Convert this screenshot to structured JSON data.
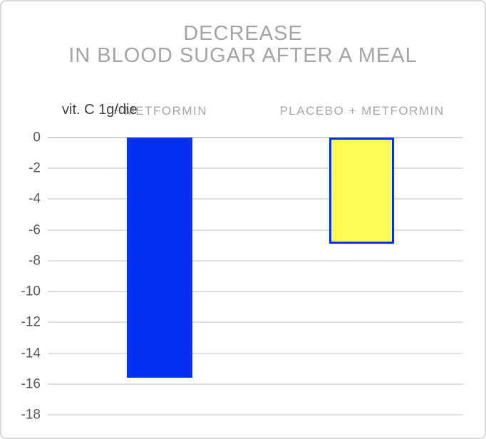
{
  "title": {
    "line1": "DECREASE",
    "line2": "IN BLOOD SUGAR AFTER A MEAL"
  },
  "annotation": {
    "text": "vit. C 1g/die"
  },
  "chart_data": {
    "type": "bar",
    "orientation": "vertical",
    "title": "DECREASE IN BLOOD SUGAR AFTER A MEAL",
    "categories": [
      "+ METFORMIN",
      "PLACEBO + METFORMIN"
    ],
    "values": [
      -15.6,
      -6.9
    ],
    "series": [
      {
        "name": "vit. C 1g/die + METFORMIN",
        "value": -15.6,
        "fill": "#0430f4",
        "border": "none"
      },
      {
        "name": "PLACEBO + METFORMIN",
        "value": -6.9,
        "fill": "#fffb57",
        "border": "#0430f4"
      }
    ],
    "xlabel": "",
    "ylabel": "",
    "ylim": [
      -18,
      0
    ],
    "yticks": [
      0,
      -2,
      -4,
      -6,
      -8,
      -10,
      -12,
      -14,
      -16,
      -18
    ],
    "grid": true,
    "legend": "none"
  },
  "colors": {
    "bar_blue": "#0430f4",
    "bar_yellow": "#fffb57",
    "title_gray": "#a4a4a4",
    "category_gray": "#a6a6a6",
    "tick_gray": "#595959",
    "annotation_dark": "#3f3f3f",
    "gridline": "#dedede",
    "frame_border": "#d9d9d9"
  }
}
